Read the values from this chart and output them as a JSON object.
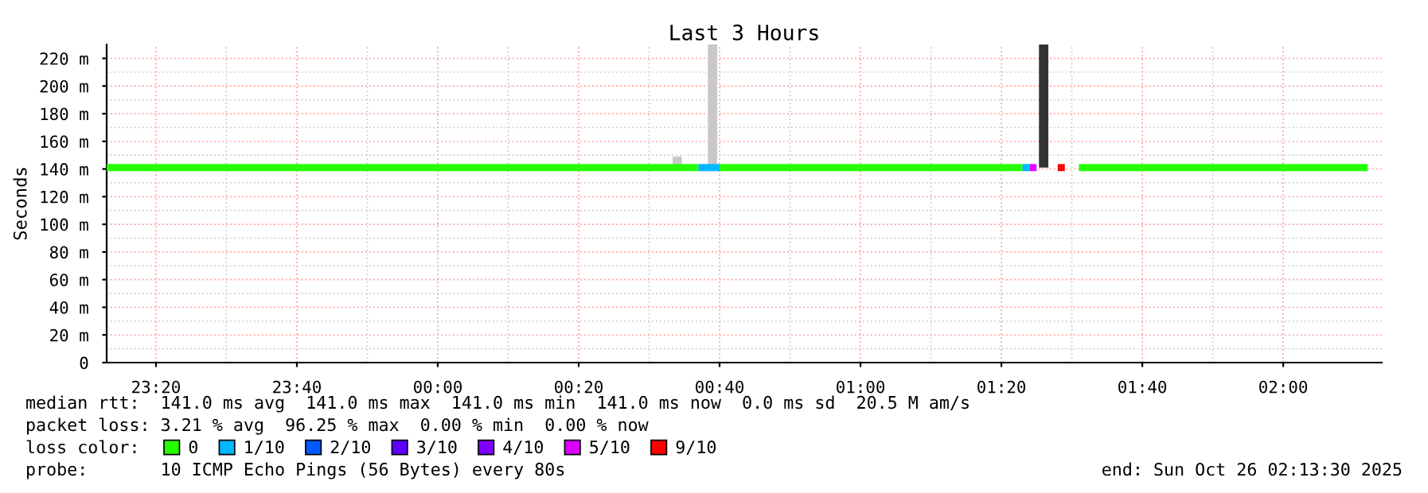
{
  "chart_data": {
    "type": "line",
    "title": "Last 3 Hours",
    "ylabel": "Seconds",
    "legend_title": "loss color:",
    "legend": "bottom",
    "grid": true,
    "line_style": "solid",
    "marker": "none",
    "xlim": [
      "2025-10-25T23:13",
      "2025-10-26T02:14"
    ],
    "xticks": [
      {
        "value": "2025-10-25T23:20",
        "label": "23:20"
      },
      {
        "value": "2025-10-25T23:40",
        "label": "23:40"
      },
      {
        "value": "2025-10-26T00:00",
        "label": "00:00"
      },
      {
        "value": "2025-10-26T00:20",
        "label": "00:20"
      },
      {
        "value": "2025-10-26T00:40",
        "label": "00:40"
      },
      {
        "value": "2025-10-26T01:00",
        "label": "01:00"
      },
      {
        "value": "2025-10-26T01:20",
        "label": "01:20"
      },
      {
        "value": "2025-10-26T01:40",
        "label": "01:40"
      },
      {
        "value": "2025-10-26T02:00",
        "label": "02:00"
      }
    ],
    "ylim": [
      0,
      230
    ],
    "yticks": [
      0,
      {
        "value": 20,
        "label": "20 m"
      },
      {
        "value": 40,
        "label": "40 m"
      },
      {
        "value": 60,
        "label": "60 m"
      },
      {
        "value": 80,
        "label": "80 m"
      },
      {
        "value": 100,
        "label": "100 m"
      },
      {
        "value": 120,
        "label": "120 m"
      },
      {
        "value": 140,
        "label": "140 m"
      },
      {
        "value": 160,
        "label": "160 m"
      },
      {
        "value": 180,
        "label": "180 m"
      },
      {
        "value": 200,
        "label": "200 m"
      },
      {
        "value": 220,
        "label": "220 m"
      }
    ],
    "series": [
      {
        "type": "bar",
        "color": "#c8c8c8",
        "x": [
          "2025-10-26T00:34",
          "2025-10-26T00:39"
        ],
        "base": [
          141,
          141
        ],
        "values": [
          8,
          89
        ]
      },
      {
        "type": "bar",
        "color": "#333333",
        "x": [
          "2025-10-26T01:26"
        ],
        "base": [
          141
        ],
        "values": [
          89
        ]
      },
      {
        "name": "0",
        "color": "#26ff00",
        "x": [
          "2025-10-25T23:13",
          "2025-10-26T00:37",
          "2025-10-26T00:38",
          "2025-10-26T00:40",
          "2025-10-26T01:23",
          "2025-10-26T01:24",
          "2025-10-26T01:31",
          "2025-10-26T02:12"
        ],
        "values": [
          141,
          141,
          null,
          141,
          141,
          null,
          141,
          141
        ]
      },
      {
        "name": "1/10",
        "color": "#00b8ff",
        "x": [
          "2025-10-26T00:37",
          "2025-10-26T00:40",
          "2025-10-26T00:41",
          "2025-10-26T01:23",
          "2025-10-26T01:24"
        ],
        "values": [
          141,
          141,
          null,
          141,
          141
        ]
      },
      {
        "name": "2/10",
        "color": "#0059ff"
      },
      {
        "name": "3/10",
        "color": "#5e00ff"
      },
      {
        "name": "4/10",
        "color": "#7e00ff"
      },
      {
        "name": "5/10",
        "color": "#dd00ff",
        "x": [
          "2025-10-26T01:24",
          "2025-10-26T01:25"
        ],
        "values": [
          141,
          141
        ]
      },
      {
        "name": "9/10",
        "color": "#ff0000",
        "x": [
          "2025-10-26T01:28",
          "2025-10-26T01:29"
        ],
        "values": [
          141,
          141
        ]
      }
    ],
    "annotations": [
      "median rtt:  141.0 ms avg  141.0 ms max  141.0 ms min  141.0 ms now  0.0 ms sd  20.5 M am/s",
      "packet loss: 3.21 % avg  96.25 % max  0.00 % min  0.00 % now",
      "probe:       10 ICMP Echo Pings (56 Bytes) every 80s",
      "end: Sun Oct 26 02:13:30 2025"
    ]
  }
}
